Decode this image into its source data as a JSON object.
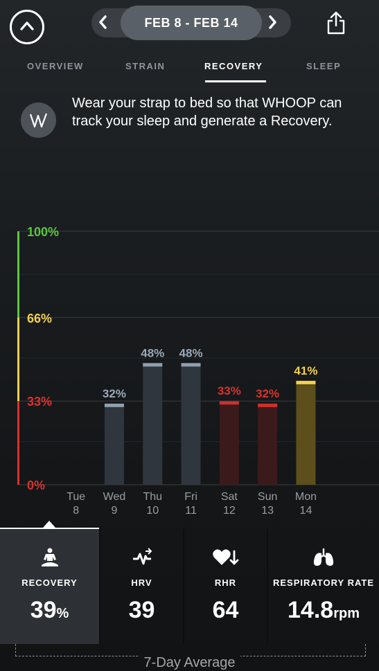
{
  "header": {
    "date_range": "FEB 8 - FEB 14"
  },
  "tabs": [
    {
      "label": "OVERVIEW",
      "active": false
    },
    {
      "label": "STRAIN",
      "active": false
    },
    {
      "label": "RECOVERY",
      "active": true
    },
    {
      "label": "SLEEP",
      "active": false
    }
  ],
  "message": "Wear your strap to bed so that WHOOP can track your sleep and generate a Recovery.",
  "colors": {
    "green": "#5ac73c",
    "yellow": "#f2d04b",
    "red": "#d8322c",
    "gray_label": "#9aa8b8"
  },
  "chart_data": {
    "type": "bar",
    "y_ticks": [
      "100%",
      "66%",
      "33%",
      "0%"
    ],
    "ylim": [
      0,
      100
    ],
    "categories": [
      {
        "day": "Tue",
        "date": "8"
      },
      {
        "day": "Wed",
        "date": "9"
      },
      {
        "day": "Thu",
        "date": "10"
      },
      {
        "day": "Fri",
        "date": "11"
      },
      {
        "day": "Sat",
        "date": "12"
      },
      {
        "day": "Sun",
        "date": "13"
      },
      {
        "day": "Mon",
        "date": "14"
      }
    ],
    "values": [
      null,
      32,
      48,
      48,
      33,
      32,
      41
    ],
    "labels": [
      "",
      "32%",
      "48%",
      "48%",
      "33%",
      "32%",
      "41%"
    ],
    "bar_styles": [
      "none",
      "gray",
      "gray",
      "gray",
      "red",
      "red",
      "yellow"
    ]
  },
  "metrics": [
    {
      "label": "RECOVERY",
      "value": "39",
      "unit": "%",
      "icon": "meditation-icon"
    },
    {
      "label": "HRV",
      "value": "39",
      "unit": "",
      "icon": "hrv-pulse-icon"
    },
    {
      "label": "RHR",
      "value": "64",
      "unit": "",
      "icon": "heart-down-icon"
    },
    {
      "label": "RESPIRATORY RATE",
      "value": "14.8",
      "unit": "rpm",
      "icon": "lungs-icon"
    }
  ],
  "footer": {
    "average_label": "7-Day Average"
  }
}
